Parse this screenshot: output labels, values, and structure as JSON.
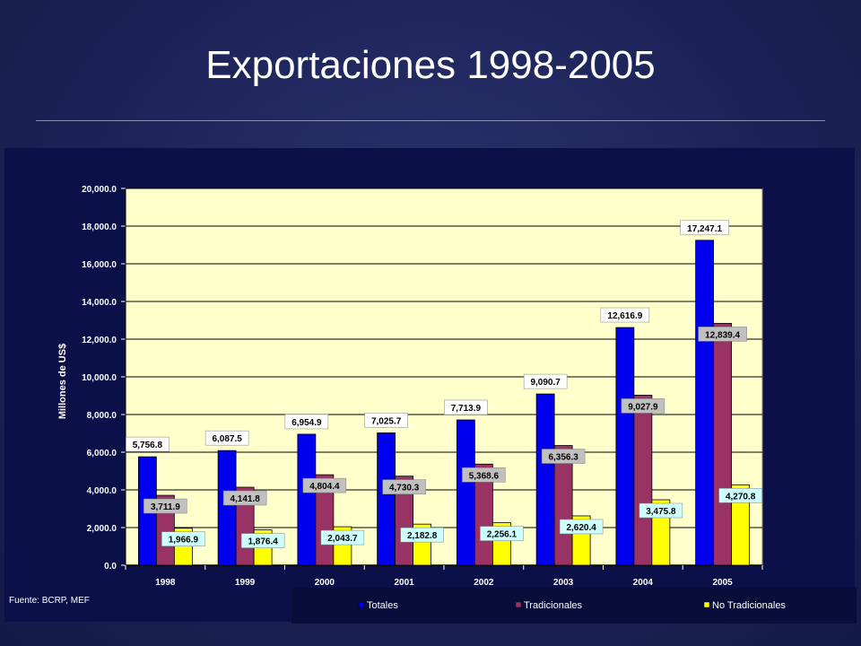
{
  "slide": {
    "title": "Exportaciones 1998-2005",
    "source": "Fuente: BCRP, MEF"
  },
  "chart_data": {
    "type": "bar",
    "categories": [
      "1998",
      "1999",
      "2000",
      "2001",
      "2002",
      "2003",
      "2004",
      "2005"
    ],
    "series": [
      {
        "name": "Totales",
        "color": "#0000ee",
        "values": [
          5756.8,
          6087.5,
          6954.9,
          7025.7,
          7713.9,
          9090.7,
          12616.9,
          17247.1
        ],
        "labels": [
          "5,756.8",
          "6,087.5",
          "6,954.9",
          "7,025.7",
          "7,713.9",
          "9,090.7",
          "12,616.9",
          "17,247.1"
        ],
        "label_bg": "#ffffff"
      },
      {
        "name": "Tradicionales",
        "color": "#993366",
        "values": [
          3711.9,
          4141.8,
          4804.4,
          4730.3,
          5368.6,
          6356.3,
          9027.9,
          12839.4
        ],
        "labels": [
          "3,711.9",
          "4,141.8",
          "4,804.4",
          "4,730.3",
          "5,368.6",
          "6,356.3",
          "9,027.9",
          "12,839.4"
        ],
        "label_bg": "#c0c0c0"
      },
      {
        "name": "No Tradicionales",
        "color": "#ffff00",
        "values": [
          1966.9,
          1876.4,
          2043.7,
          2182.8,
          2256.1,
          2620.4,
          3475.8,
          4270.8
        ],
        "labels": [
          "1,966.9",
          "1,876.4",
          "2,043.7",
          "2,182.8",
          "2,256.1",
          "2,620.4",
          "3,475.8",
          "4,270.8"
        ],
        "label_bg": "#ccffff"
      }
    ],
    "ylabel": "Millones de US$",
    "ylim": [
      0,
      20000
    ],
    "yticks": [
      "0.0",
      "2,000.0",
      "4,000.0",
      "6,000.0",
      "8,000.0",
      "10,000.0",
      "12,000.0",
      "14,000.0",
      "16,000.0",
      "18,000.0",
      "20,000.0"
    ],
    "ytick_values": [
      0,
      2000,
      4000,
      6000,
      8000,
      10000,
      12000,
      14000,
      16000,
      18000,
      20000
    ],
    "plot_bg": "#ffffcc",
    "grid": true,
    "legend_position": "bottom"
  }
}
